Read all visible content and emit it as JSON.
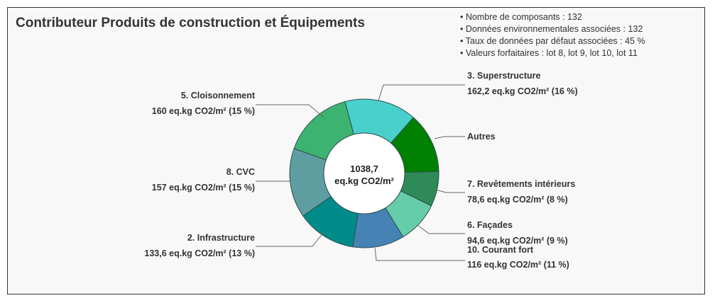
{
  "chart_data": {
    "type": "pie",
    "title": "Contributeur Produits de construction et Équipements",
    "unit": "eq.kg CO2/m²",
    "total": "1038,7",
    "total_unit": "eq.kg CO2/m²",
    "slices": [
      {
        "name": "3. Superstructure",
        "value": 162.2,
        "value_label": "162,2 eq.kg CO2/m² (16 %)",
        "color": "#48D1CC"
      },
      {
        "name": "Autres",
        "value": 136.7,
        "value_label": "",
        "color": "#008000"
      },
      {
        "name": "7. Revêtements intérieurs",
        "value": 78.6,
        "value_label": "78,6 eq.kg CO2/m² (8 %)",
        "color": "#2E8B57"
      },
      {
        "name": "6. Façades",
        "value": 94.6,
        "value_label": "94,6 eq.kg CO2/m² (9 %)",
        "color": "#66CDAA"
      },
      {
        "name": "10. Courant fort",
        "value": 116,
        "value_label": "116 eq.kg CO2/m² (11 %)",
        "color": "#4682B4"
      },
      {
        "name": "2. Infrastructure",
        "value": 133.6,
        "value_label": "133,6 eq.kg CO2/m² (13 %)",
        "color": "#008B8B"
      },
      {
        "name": "8. CVC",
        "value": 157,
        "value_label": "157 eq.kg CO2/m² (15 %)",
        "color": "#5F9EA0"
      },
      {
        "name": "5. Cloisonnement",
        "value": 160,
        "value_label": "160 eq.kg CO2/m² (15 %)",
        "color": "#3CB371"
      }
    ]
  },
  "info": [
    "Nombre de composants : 132",
    "Données environnementales associées : 132",
    "Taux de données par défaut associées : 45 %",
    "Valeurs forfaitaires : lot 8, lot 9, lot 10, lot 11"
  ]
}
